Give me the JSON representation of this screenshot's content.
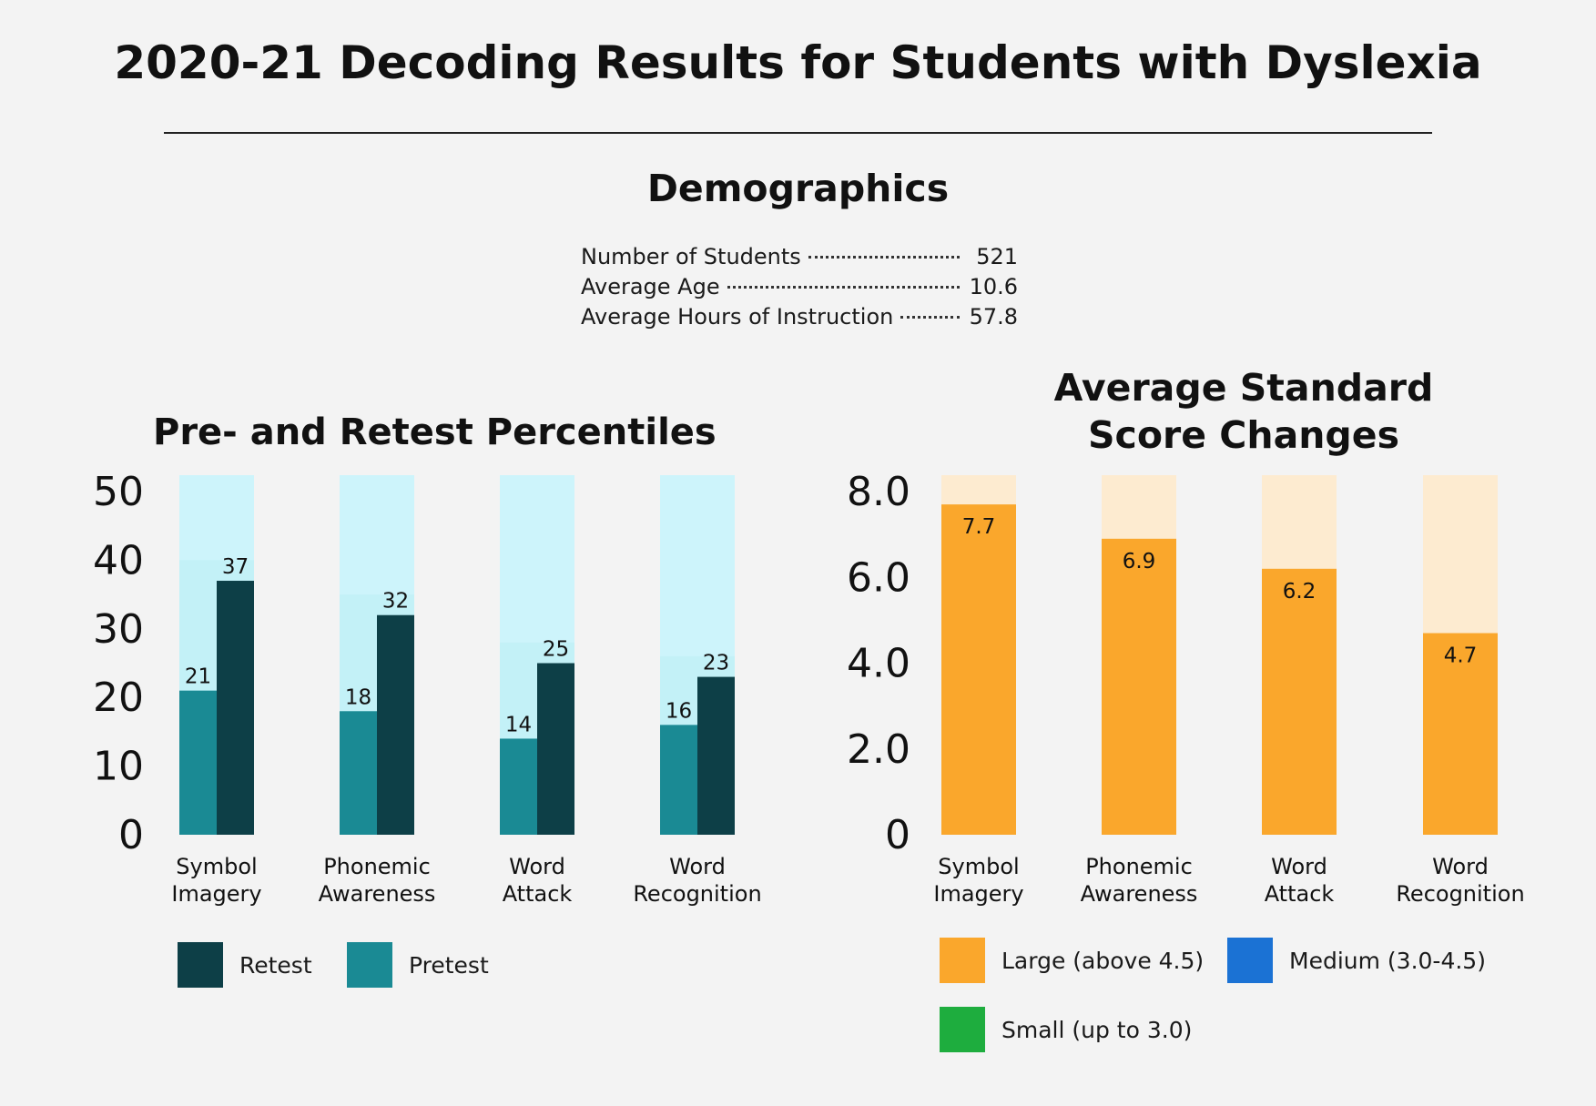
{
  "title": "2020-21 Decoding Results for Students with Dyslexia",
  "demographics": {
    "title": "Demographics",
    "rows": [
      {
        "label": "Number of Students",
        "value": "521"
      },
      {
        "label": "Average Age",
        "value": "10.6"
      },
      {
        "label": "Average Hours of Instruction",
        "value": "57.8"
      }
    ]
  },
  "colors": {
    "retest": "#0d3f47",
    "pretest": "#1a8a94",
    "percentile_bg_light": "#cdf4fb",
    "percentile_bg_mid": "#bdeef5",
    "large": "#faa72c",
    "large_bg": "#fdebd0",
    "medium": "#1b72d4",
    "small": "#1ead3e"
  },
  "chart_data": [
    {
      "type": "bar",
      "title": "Pre- and Retest Percentiles",
      "categories": [
        [
          "Symbol",
          "Imagery"
        ],
        [
          "Phonemic",
          "Awareness"
        ],
        [
          "Word",
          "Attack"
        ],
        [
          "Word",
          "Recognition"
        ]
      ],
      "series": [
        {
          "name": "Pretest",
          "values": [
            21,
            18,
            14,
            16
          ]
        },
        {
          "name": "Retest",
          "values": [
            37,
            32,
            25,
            23
          ]
        }
      ],
      "ylim": [
        0,
        50
      ],
      "yticks": [
        "0",
        "10",
        "20",
        "30",
        "40",
        "50"
      ],
      "legend": {
        "position": "bottom-left",
        "items": [
          "Retest",
          "Pretest"
        ]
      }
    },
    {
      "type": "bar",
      "title": "Average Standard Score Changes",
      "title_lines": [
        "Average Standard",
        "Score Changes"
      ],
      "categories": [
        [
          "Symbol",
          "Imagery"
        ],
        [
          "Phonemic",
          "Awareness"
        ],
        [
          "Word",
          "Attack"
        ],
        [
          "Word",
          "Recognition"
        ]
      ],
      "series": [
        {
          "values": [
            7.7,
            6.9,
            6.2,
            4.7
          ],
          "labels": [
            "7.7",
            "6.9",
            "6.2",
            "4.7"
          ]
        }
      ],
      "ylim": [
        0,
        8.0
      ],
      "yticks": [
        "0",
        "2.0",
        "4.0",
        "6.0",
        "8.0"
      ],
      "legend": {
        "position": "bottom",
        "items": [
          "Large (above 4.5)",
          "Medium (3.0-4.5)",
          "Small (up to 3.0)"
        ]
      }
    }
  ]
}
